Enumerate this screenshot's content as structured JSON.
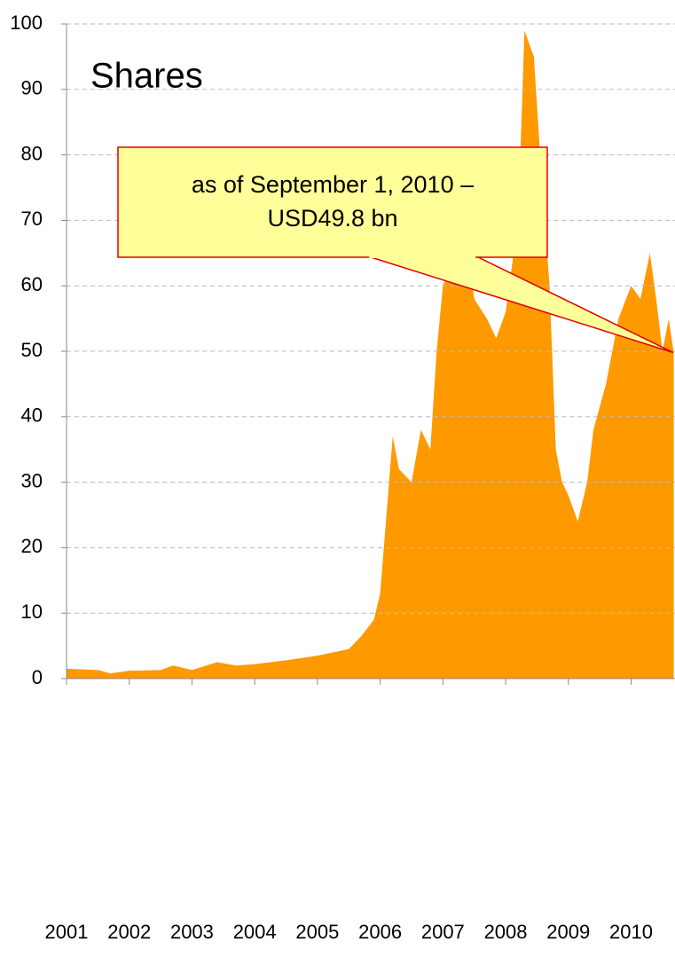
{
  "chart_data": {
    "type": "area",
    "title": "Shares",
    "annotation": [
      "as of September 1, 2010 –",
      "USD49.8 bn"
    ],
    "x": [
      2001,
      2001.5,
      2001.7,
      2002,
      2002.5,
      2002.7,
      2003,
      2003.4,
      2003.7,
      2004,
      2004.5,
      2005,
      2005.5,
      2005.7,
      2005.9,
      2006.0,
      2006.1,
      2006.2,
      2006.3,
      2006.5,
      2006.65,
      2006.8,
      2006.9,
      2007.0,
      2007.2,
      2007.4,
      2007.5,
      2007.7,
      2007.85,
      2008.0,
      2008.2,
      2008.3,
      2008.45,
      2008.55,
      2008.7,
      2008.8,
      2008.9,
      2009.0,
      2009.15,
      2009.3,
      2009.4,
      2009.6,
      2009.8,
      2010.0,
      2010.15,
      2010.3,
      2010.4,
      2010.5,
      2010.6,
      2010.68
    ],
    "series": [
      {
        "name": "Shares",
        "color": "#ff9900",
        "values": [
          1.5,
          1.3,
          0.8,
          1.2,
          1.3,
          2,
          1.3,
          2.5,
          2,
          2.2,
          2.8,
          3.5,
          4.5,
          6.5,
          9,
          13,
          25,
          37,
          32,
          30,
          38,
          35,
          50,
          60,
          65,
          66,
          58,
          55,
          52,
          56,
          70,
          99,
          95,
          80,
          60,
          35,
          30,
          28,
          24,
          30,
          38,
          45,
          55,
          60,
          58,
          65,
          58,
          50,
          55,
          49.8
        ]
      }
    ],
    "xlim": [
      2001,
      2010.7
    ],
    "xticks": [
      2001,
      2002,
      2003,
      2004,
      2005,
      2006,
      2007,
      2008,
      2009,
      2010
    ],
    "ylim": [
      0,
      100
    ],
    "yticks": [
      0,
      10,
      20,
      30,
      40,
      50,
      60,
      70,
      80,
      90,
      100
    ],
    "grid": true
  }
}
